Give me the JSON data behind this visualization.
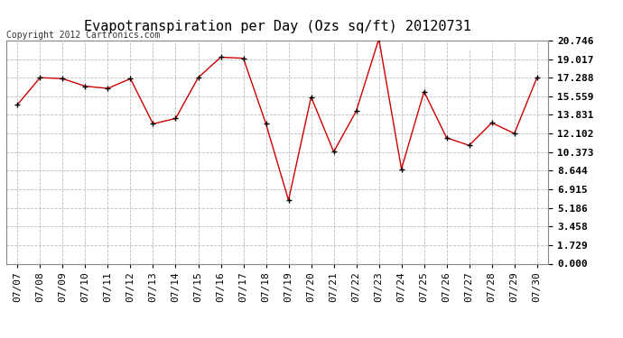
{
  "title": "Evapotranspiration per Day (Ozs sq/ft) 20120731",
  "copyright": "Copyright 2012 Cartronics.com",
  "x_labels": [
    "07/07",
    "07/08",
    "07/09",
    "07/10",
    "07/11",
    "07/12",
    "07/13",
    "07/14",
    "07/15",
    "07/16",
    "07/17",
    "07/18",
    "07/19",
    "07/20",
    "07/21",
    "07/22",
    "07/23",
    "07/24",
    "07/25",
    "07/26",
    "07/27",
    "07/28",
    "07/29",
    "07/30"
  ],
  "y_values": [
    14.8,
    17.3,
    17.2,
    16.5,
    16.3,
    17.2,
    13.0,
    13.5,
    17.3,
    19.2,
    19.1,
    13.0,
    5.9,
    15.5,
    10.4,
    14.2,
    20.9,
    8.8,
    16.0,
    11.7,
    11.0,
    13.1,
    12.1,
    17.3
  ],
  "y_ticks": [
    0.0,
    1.729,
    3.458,
    5.186,
    6.915,
    8.644,
    10.373,
    12.102,
    13.831,
    15.559,
    17.288,
    19.017,
    20.746
  ],
  "line_color": "#cc0000",
  "marker_color": "#000000",
  "legend_bg_color": "#cc0000",
  "legend_text_color": "#ffffff",
  "grid_color": "#bbbbbb",
  "background_color": "#ffffff",
  "title_fontsize": 11,
  "copyright_fontsize": 7,
  "tick_fontsize": 8,
  "legend_fontsize": 8,
  "ylim": [
    0.0,
    20.746
  ],
  "xlim": [
    -0.5,
    23.5
  ]
}
